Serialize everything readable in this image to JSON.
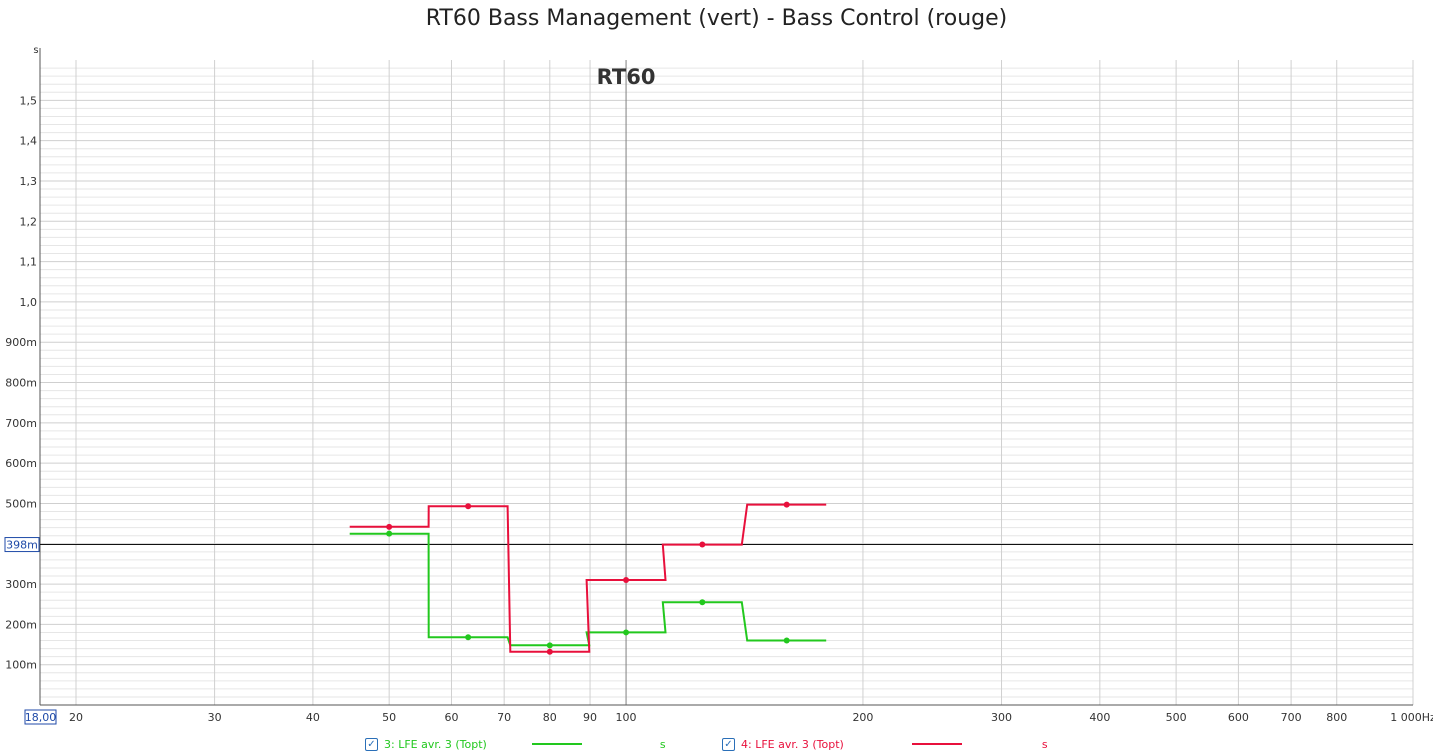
{
  "title": "RT60 Bass Management (vert) - Bass Control (rouge)",
  "chart_data": {
    "type": "line",
    "title": "RT60 Bass Management (vert) - Bass Control (rouge)",
    "inner_title": "RT60",
    "ylabel": "s",
    "xlabel": "Hz",
    "x_scale": "log",
    "xlim": [
      18,
      1000
    ],
    "ylim": [
      0,
      1.6
    ],
    "grid": true,
    "cursor": {
      "y": 0.398,
      "label": "398m"
    },
    "x_start_label": "18,00",
    "x_ticks": [
      {
        "v": 20,
        "label": "20"
      },
      {
        "v": 30,
        "label": "30"
      },
      {
        "v": 40,
        "label": "40"
      },
      {
        "v": 50,
        "label": "50"
      },
      {
        "v": 60,
        "label": "60"
      },
      {
        "v": 70,
        "label": "70"
      },
      {
        "v": 80,
        "label": "80"
      },
      {
        "v": 90,
        "label": "90"
      },
      {
        "v": 100,
        "label": "100"
      },
      {
        "v": 200,
        "label": "200"
      },
      {
        "v": 300,
        "label": "300"
      },
      {
        "v": 400,
        "label": "400"
      },
      {
        "v": 500,
        "label": "500"
      },
      {
        "v": 600,
        "label": "600"
      },
      {
        "v": 700,
        "label": "700"
      },
      {
        "v": 800,
        "label": "800"
      },
      {
        "v": 1000,
        "label": "1 000Hz"
      }
    ],
    "y_ticks": [
      {
        "v": 0.1,
        "label": "100m"
      },
      {
        "v": 0.2,
        "label": "200m"
      },
      {
        "v": 0.3,
        "label": "300m"
      },
      {
        "v": 0.4,
        "label": ""
      },
      {
        "v": 0.5,
        "label": "500m"
      },
      {
        "v": 0.6,
        "label": "600m"
      },
      {
        "v": 0.7,
        "label": "700m"
      },
      {
        "v": 0.8,
        "label": "800m"
      },
      {
        "v": 0.9,
        "label": "900m"
      },
      {
        "v": 1.0,
        "label": "1,0"
      },
      {
        "v": 1.1,
        "label": "1,1"
      },
      {
        "v": 1.2,
        "label": "1,2"
      },
      {
        "v": 1.3,
        "label": "1,3"
      },
      {
        "v": 1.4,
        "label": "1,4"
      },
      {
        "v": 1.5,
        "label": "1,5"
      }
    ],
    "series": [
      {
        "name": "3: LFE avr. 3 (Topt)",
        "color": "#22c81e",
        "x": [
          50,
          63,
          80,
          100,
          125,
          160
        ],
        "y": [
          0.425,
          0.168,
          0.148,
          0.18,
          0.255,
          0.16
        ]
      },
      {
        "name": "4: LFE avr. 3 (Topt)",
        "color": "#e8103c",
        "x": [
          50,
          63,
          80,
          100,
          125,
          160
        ],
        "y": [
          0.442,
          0.493,
          0.132,
          0.31,
          0.398,
          0.497
        ]
      }
    ]
  },
  "legend": [
    {
      "label": "3: LFE avr. 3 (Topt)",
      "unit": "s",
      "color": "#22c81e",
      "checkmark": "✓"
    },
    {
      "label": "4: LFE avr. 3 (Topt)",
      "unit": "s",
      "color": "#e8103c",
      "checkmark": "✓"
    }
  ]
}
